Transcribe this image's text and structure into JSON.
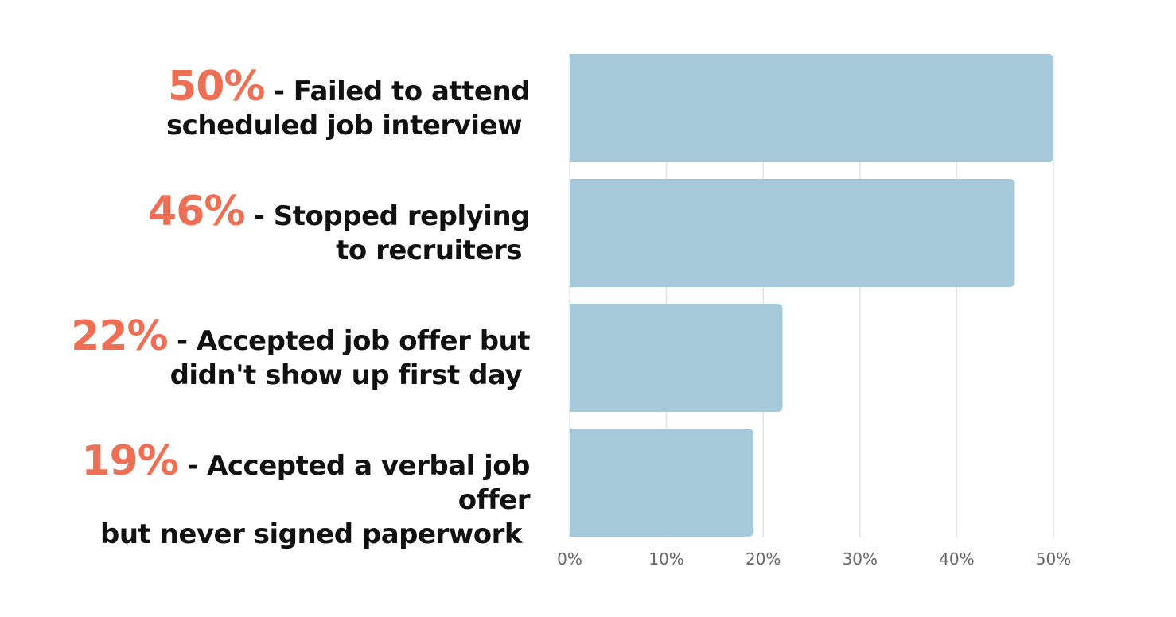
{
  "chart_data": {
    "type": "bar",
    "orientation": "horizontal",
    "categories": [
      {
        "percent_label": "50%",
        "text_line1": "- Failed to attend",
        "text_line2": "scheduled job interview"
      },
      {
        "percent_label": "46%",
        "text_line1": "- Stopped replying",
        "text_line2": "to recruiters"
      },
      {
        "percent_label": "22%",
        "text_line1": "- Accepted job offer but",
        "text_line2": "didn't show up first day"
      },
      {
        "percent_label": "19%",
        "text_line1": "- Accepted a verbal job offer",
        "text_line2": "but never signed paperwork"
      }
    ],
    "values": [
      50,
      46,
      22,
      19
    ],
    "x_ticks": [
      "0%",
      "10%",
      "20%",
      "30%",
      "40%",
      "50%"
    ],
    "xlim": [
      0,
      50
    ],
    "grid": "vertical",
    "bar_color": "#a5c9d8",
    "grid_color": "#e2e2e2",
    "percent_color": "#ef6f55",
    "label_color": "#111111",
    "tick_color": "#666666",
    "title": "",
    "xlabel": "",
    "ylabel": ""
  }
}
